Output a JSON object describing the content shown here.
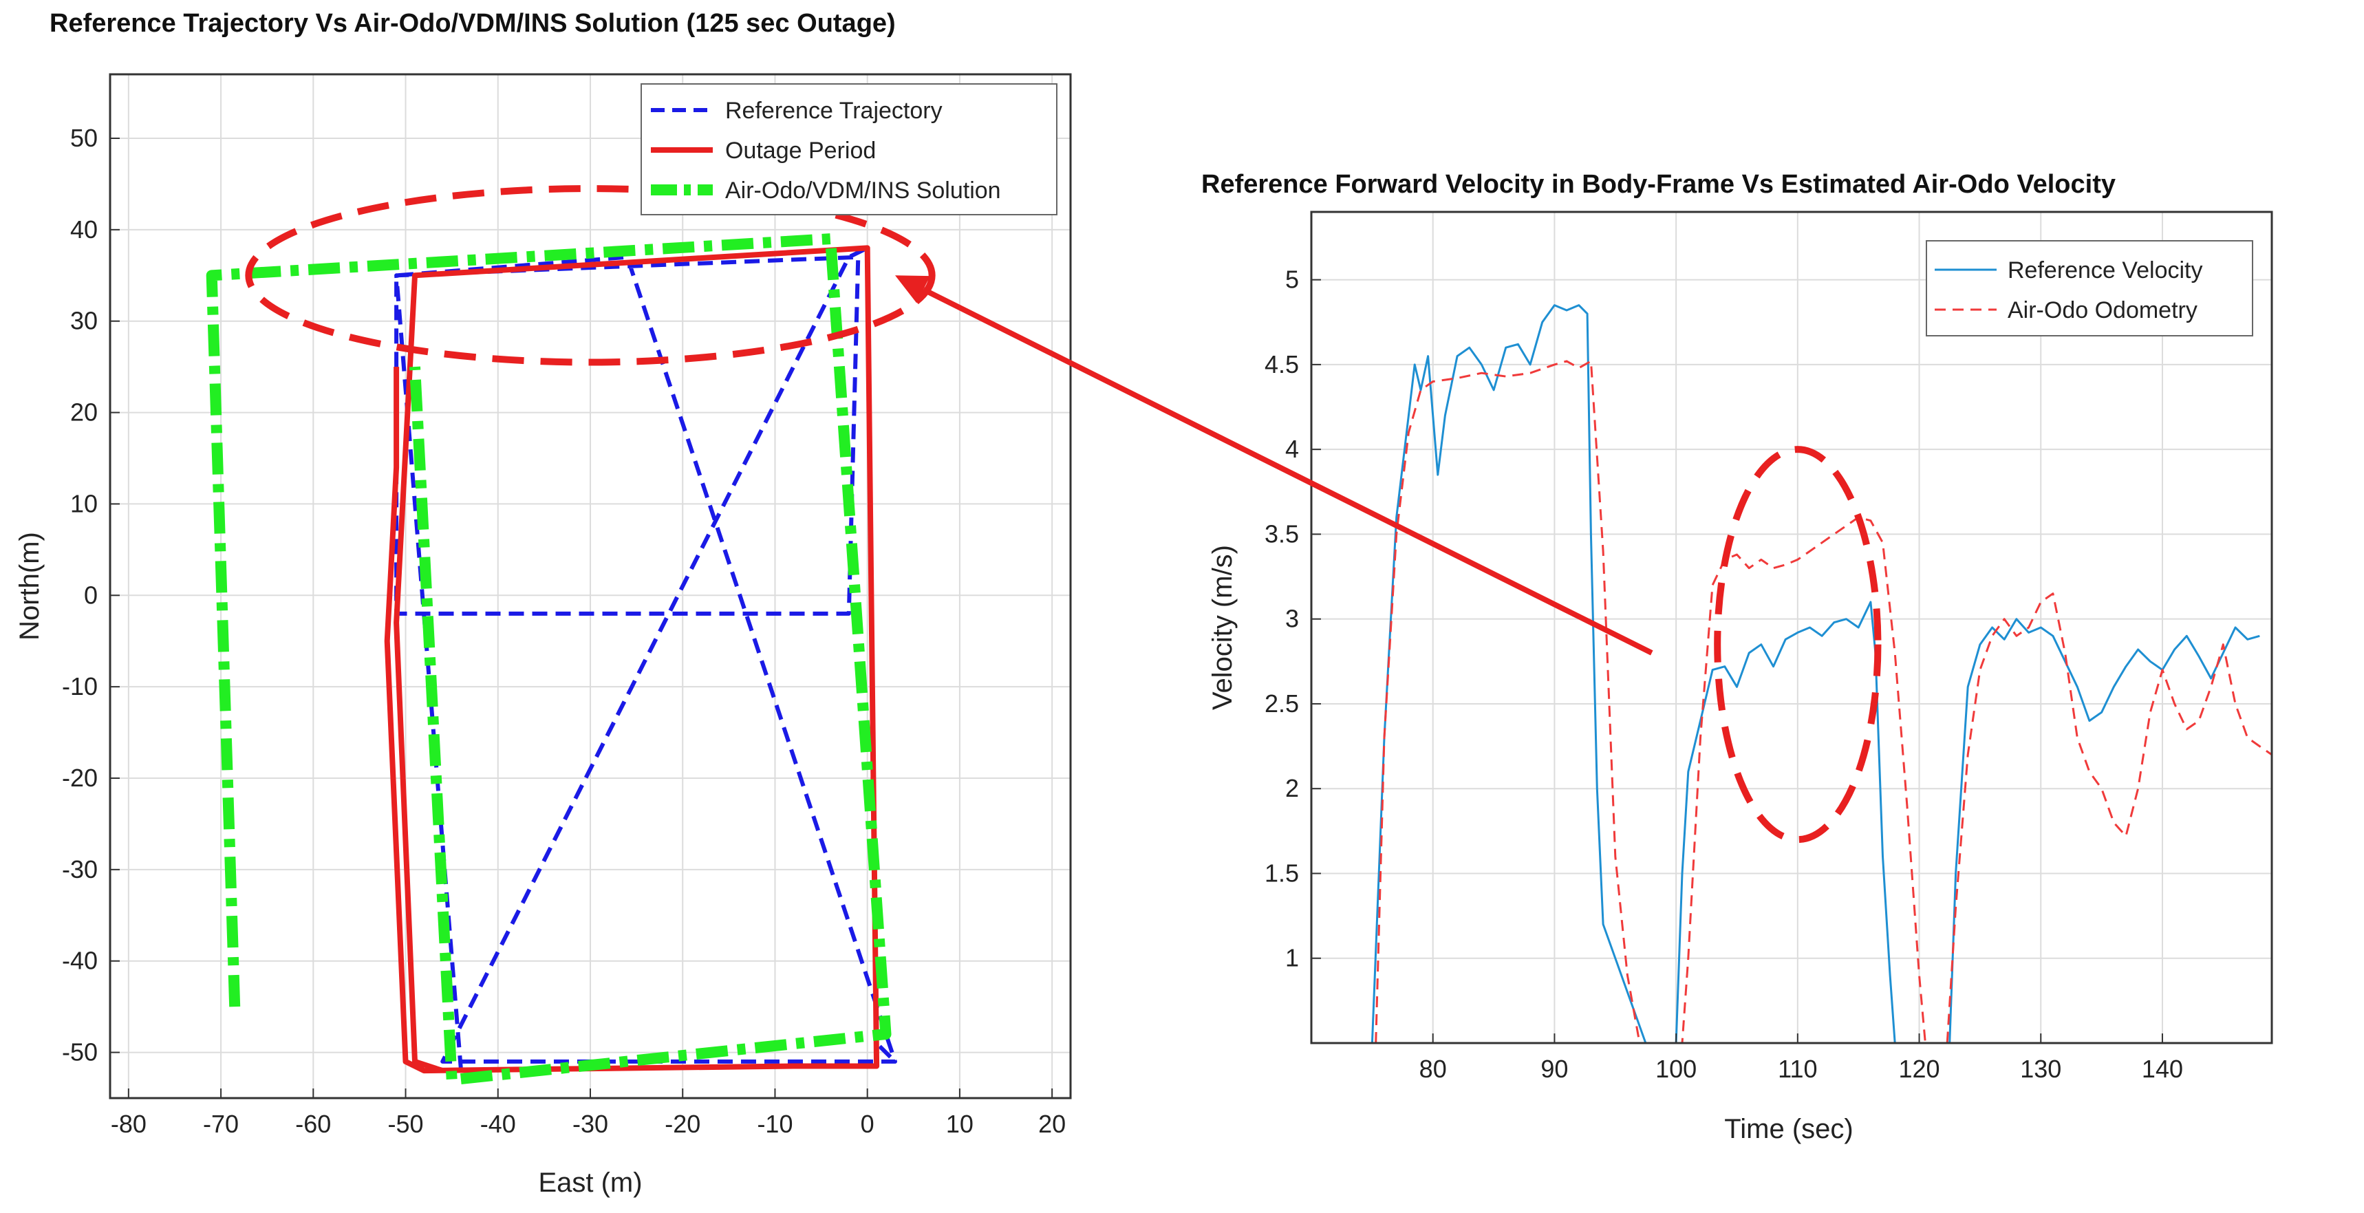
{
  "chart_data": [
    {
      "type": "line",
      "title": "Reference Trajectory Vs Air-Odo/VDM/INS Solution (125 sec Outage)",
      "xlabel": "East (m)",
      "ylabel": "North(m)",
      "xlim": [
        -82,
        22
      ],
      "ylim": [
        -55,
        57
      ],
      "xticks": [
        -80,
        -70,
        -60,
        -50,
        -40,
        -30,
        -20,
        -10,
        0,
        10,
        20
      ],
      "yticks": [
        50,
        40,
        30,
        20,
        10,
        0,
        -10,
        -20,
        -30,
        -40,
        -50
      ],
      "grid": true,
      "legend_position": "top-right",
      "series": [
        {
          "name": "Reference Trajectory",
          "color": "#1a1ae6",
          "style": "dashed",
          "points": [
            [
              -44,
              -52
            ],
            [
              -51,
              35
            ],
            [
              -1,
              37
            ],
            [
              -2,
              -2
            ],
            [
              -51,
              -2
            ],
            [
              -51,
              35
            ],
            [
              -26,
              37
            ],
            [
              3,
              -51
            ],
            [
              -46,
              -51
            ],
            [
              -2,
              37
            ],
            [
              0,
              38
            ],
            [
              1,
              -49
            ],
            [
              3,
              -51
            ]
          ]
        },
        {
          "name": "Outage Period",
          "color": "#e82020",
          "style": "solid",
          "points": [
            [
              -51,
              25
            ],
            [
              -51,
              14
            ],
            [
              -52,
              -5
            ],
            [
              -50,
              -51
            ],
            [
              -48,
              -52
            ],
            [
              -8,
              -51.5
            ],
            [
              1,
              -51.5
            ],
            [
              0,
              38
            ],
            [
              -49,
              35
            ],
            [
              -51,
              -3
            ],
            [
              -49,
              -51
            ],
            [
              -46,
              -52
            ]
          ]
        },
        {
          "name": "Air-Odo/VDM/INS Solution",
          "color": "#22ee22",
          "style": "dashdot",
          "points": [
            [
              -68.5,
              -45
            ],
            [
              -71,
              35
            ],
            [
              -4,
              39
            ],
            [
              2,
              -48
            ],
            [
              -45,
              -53
            ],
            [
              -49,
              25
            ]
          ]
        }
      ],
      "annotations": [
        {
          "type": "ellipse",
          "color": "#e82020",
          "style": "dashed",
          "center": [
            -30,
            35
          ],
          "radius_x": 37,
          "radius_y": 9.5
        }
      ]
    },
    {
      "type": "line",
      "title": "Reference Forward Velocity in Body-Frame Vs Estimated Air-Odo Velocity",
      "xlabel": "Time (sec)",
      "ylabel": "Velocity (m/s)",
      "xlim": [
        70,
        149
      ],
      "ylim": [
        0.5,
        5.4
      ],
      "xticks": [
        80,
        90,
        100,
        110,
        120,
        130,
        140
      ],
      "yticks": [
        5,
        4.5,
        4,
        3.5,
        3,
        2.5,
        2,
        1.5,
        1
      ],
      "grid": true,
      "legend_position": "top-right",
      "series": [
        {
          "name": "Reference Velocity",
          "color": "#1e8fd2",
          "style": "solid",
          "points": [
            [
              75,
              0.5
            ],
            [
              76,
              2.3
            ],
            [
              77,
              3.6
            ],
            [
              78,
              4.2
            ],
            [
              78.5,
              4.5
            ],
            [
              79,
              4.35
            ],
            [
              79.6,
              4.55
            ],
            [
              80.4,
              3.85
            ],
            [
              81,
              4.2
            ],
            [
              82,
              4.55
            ],
            [
              83,
              4.6
            ],
            [
              84,
              4.5
            ],
            [
              85,
              4.35
            ],
            [
              86,
              4.6
            ],
            [
              87,
              4.62
            ],
            [
              88,
              4.5
            ],
            [
              89,
              4.75
            ],
            [
              90,
              4.85
            ],
            [
              91,
              4.82
            ],
            [
              92,
              4.85
            ],
            [
              92.7,
              4.8
            ],
            [
              93,
              3.5
            ],
            [
              93.5,
              2.0
            ],
            [
              94,
              1.2
            ],
            [
              95,
              1.0
            ],
            [
              96,
              0.8
            ],
            [
              97,
              0.6
            ],
            [
              97.5,
              0.5
            ],
            [
              100,
              0.5
            ],
            [
              100.5,
              1.5
            ],
            [
              101,
              2.1
            ],
            [
              102,
              2.4
            ],
            [
              103,
              2.7
            ],
            [
              104,
              2.72
            ],
            [
              105,
              2.6
            ],
            [
              106,
              2.8
            ],
            [
              107,
              2.85
            ],
            [
              108,
              2.72
            ],
            [
              109,
              2.88
            ],
            [
              110,
              2.92
            ],
            [
              111,
              2.95
            ],
            [
              112,
              2.9
            ],
            [
              113,
              2.98
            ],
            [
              114,
              3.0
            ],
            [
              115,
              2.95
            ],
            [
              116,
              3.1
            ],
            [
              116.4,
              2.8
            ],
            [
              117,
              1.6
            ],
            [
              117.6,
              0.9
            ],
            [
              118,
              0.5
            ],
            [
              122.5,
              0.5
            ],
            [
              123,
              1.5
            ],
            [
              124,
              2.6
            ],
            [
              125,
              2.85
            ],
            [
              126,
              2.95
            ],
            [
              127,
              2.88
            ],
            [
              128,
              3.0
            ],
            [
              129,
              2.92
            ],
            [
              130,
              2.95
            ],
            [
              131,
              2.9
            ],
            [
              132,
              2.75
            ],
            [
              133,
              2.6
            ],
            [
              134,
              2.4
            ],
            [
              135,
              2.45
            ],
            [
              136,
              2.6
            ],
            [
              137,
              2.72
            ],
            [
              138,
              2.82
            ],
            [
              139,
              2.75
            ],
            [
              140,
              2.7
            ],
            [
              141,
              2.82
            ],
            [
              142,
              2.9
            ],
            [
              143,
              2.78
            ],
            [
              144,
              2.65
            ],
            [
              145,
              2.8
            ],
            [
              146,
              2.95
            ],
            [
              147,
              2.88
            ],
            [
              148,
              2.9
            ]
          ]
        },
        {
          "name": "Air-Odo Odometry",
          "color": "#f03a3a",
          "style": "dashed",
          "points": [
            [
              75.3,
              0.5
            ],
            [
              76,
              2.3
            ],
            [
              77,
              3.5
            ],
            [
              78,
              4.1
            ],
            [
              79,
              4.35
            ],
            [
              80,
              4.4
            ],
            [
              82,
              4.42
            ],
            [
              84,
              4.45
            ],
            [
              86,
              4.43
            ],
            [
              88,
              4.45
            ],
            [
              90,
              4.5
            ],
            [
              91,
              4.52
            ],
            [
              92,
              4.48
            ],
            [
              93,
              4.52
            ],
            [
              94,
              3.4
            ],
            [
              95,
              1.6
            ],
            [
              96,
              0.9
            ],
            [
              97,
              0.5
            ],
            [
              100.5,
              0.5
            ],
            [
              101,
              1.0
            ],
            [
              102,
              2.3
            ],
            [
              103,
              3.2
            ],
            [
              104,
              3.35
            ],
            [
              105,
              3.38
            ],
            [
              106,
              3.3
            ],
            [
              107,
              3.35
            ],
            [
              108,
              3.3
            ],
            [
              109,
              3.32
            ],
            [
              110,
              3.35
            ],
            [
              111,
              3.4
            ],
            [
              112,
              3.45
            ],
            [
              113,
              3.5
            ],
            [
              114,
              3.55
            ],
            [
              115,
              3.6
            ],
            [
              116,
              3.58
            ],
            [
              117,
              3.45
            ],
            [
              118,
              2.8
            ],
            [
              119,
              1.9
            ],
            [
              120,
              0.9
            ],
            [
              120.5,
              0.5
            ],
            [
              122.3,
              0.5
            ],
            [
              123,
              1.3
            ],
            [
              124,
              2.2
            ],
            [
              125,
              2.7
            ],
            [
              126,
              2.9
            ],
            [
              127,
              3.0
            ],
            [
              128,
              2.9
            ],
            [
              129,
              2.95
            ],
            [
              130,
              3.1
            ],
            [
              131,
              3.15
            ],
            [
              132,
              2.8
            ],
            [
              133,
              2.3
            ],
            [
              134,
              2.1
            ],
            [
              135,
              2.0
            ],
            [
              136,
              1.8
            ],
            [
              137,
              1.72
            ],
            [
              138,
              2.0
            ],
            [
              139,
              2.45
            ],
            [
              140,
              2.7
            ],
            [
              141,
              2.5
            ],
            [
              142,
              2.35
            ],
            [
              143,
              2.4
            ],
            [
              144,
              2.6
            ],
            [
              145,
              2.85
            ],
            [
              146,
              2.5
            ],
            [
              147,
              2.3
            ],
            [
              148,
              2.25
            ],
            [
              149,
              2.2
            ]
          ]
        }
      ],
      "annotations": [
        {
          "type": "ellipse",
          "color": "#e82020",
          "style": "dashed",
          "center": [
            110,
            2.85
          ],
          "radius_x": 6.6,
          "radius_y": 1.15
        }
      ]
    }
  ],
  "connector_arrow": {
    "color": "#e82020",
    "from_chart": 1,
    "from_point": [
      98,
      2.8
    ],
    "to_chart": 0,
    "to_point": [
      3,
      35
    ]
  }
}
